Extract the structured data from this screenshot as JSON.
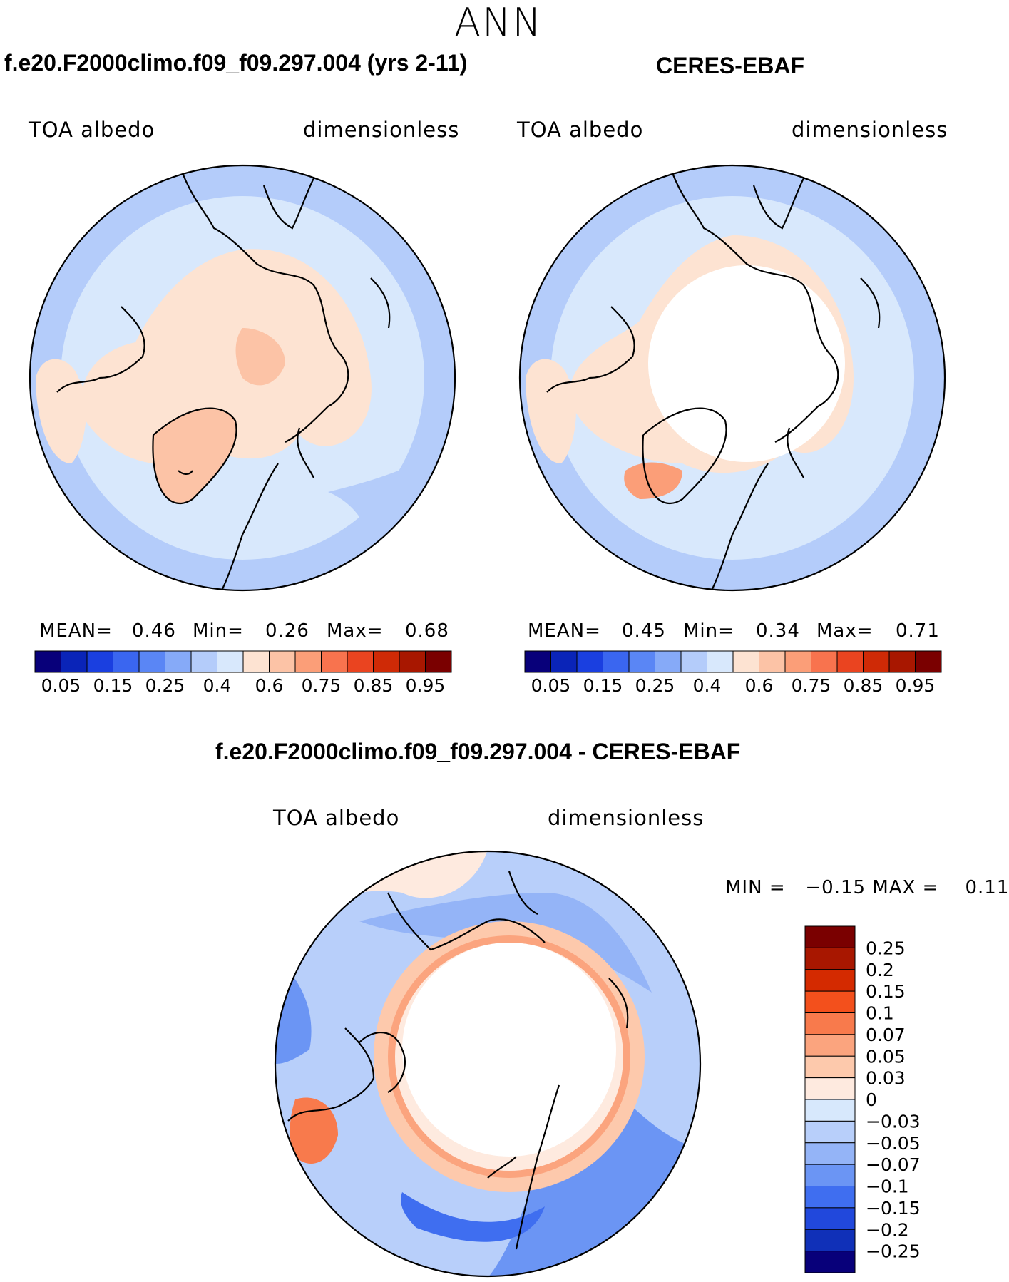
{
  "season": "ANN",
  "panels": [
    {
      "title": "f.e20.F2000climo.f09_f09.297.004 (yrs 2-11)",
      "variable": "TOA albedo",
      "units": "dimensionless",
      "mean_label": "MEAN=",
      "mean": "0.46",
      "min_label": "Min=",
      "min": "0.26",
      "max_label": "Max=",
      "max": "0.68"
    },
    {
      "title": "CERES-EBAF",
      "variable": "TOA albedo",
      "units": "dimensionless",
      "mean_label": "MEAN=",
      "mean": "0.45",
      "min_label": "Min=",
      "min": "0.34",
      "max_label": "Max=",
      "max": "0.71"
    }
  ],
  "diff_panel": {
    "title": "f.e20.F2000climo.f09_f09.297.004 - CERES-EBAF",
    "variable": "TOA albedo",
    "units": "dimensionless",
    "stats_text": "MIN =   −0.15 MAX =    0.11"
  },
  "colors": {
    "abs_levels": [
      "#08007a",
      "#0a24b8",
      "#1a3fe0",
      "#3a66f0",
      "#5a86f5",
      "#86aaf8",
      "#b4ccfa",
      "#d8e8fc",
      "#fde3d2",
      "#fcc3a6",
      "#fb9e78",
      "#f8734e",
      "#ea4420",
      "#cf2a06",
      "#a81700",
      "#7a0000"
    ],
    "diff_levels": [
      "#7a0000",
      "#a81700",
      "#d42a00",
      "#f3501c",
      "#f87a4c",
      "#fba47e",
      "#fdc9ac",
      "#feeadf",
      "#d7e8fc",
      "#b8cffa",
      "#94b4f7",
      "#6b95f4",
      "#3f6ef0",
      "#2148dc",
      "#1030b8",
      "#08007a"
    ],
    "land": "#000000"
  },
  "chart_data": [
    {
      "type": "heatmap",
      "projection": "north-polar-stereographic",
      "title": "f.e20.F2000climo.f09_f09.297.004 (yrs 2-11)",
      "colorbar_ticks": [
        "0.05",
        "0.15",
        "0.25",
        "0.4",
        "0.6",
        "0.75",
        "0.85",
        "0.95"
      ],
      "levels": [
        0.05,
        0.1,
        0.15,
        0.2,
        0.25,
        0.3,
        0.4,
        0.5,
        0.6,
        0.7,
        0.75,
        0.8,
        0.85,
        0.9,
        0.95
      ],
      "mean": 0.46,
      "min": 0.26,
      "max": 0.68
    },
    {
      "type": "heatmap",
      "projection": "north-polar-stereographic",
      "title": "CERES-EBAF",
      "colorbar_ticks": [
        "0.05",
        "0.15",
        "0.25",
        "0.4",
        "0.6",
        "0.75",
        "0.85",
        "0.95"
      ],
      "levels": [
        0.05,
        0.1,
        0.15,
        0.2,
        0.25,
        0.3,
        0.4,
        0.5,
        0.6,
        0.7,
        0.75,
        0.8,
        0.85,
        0.9,
        0.95
      ],
      "mean": 0.45,
      "min": 0.34,
      "max": 0.71
    },
    {
      "type": "heatmap",
      "projection": "north-polar-stereographic",
      "title": "f.e20.F2000climo.f09_f09.297.004 - CERES-EBAF",
      "colorbar_ticks": [
        "0.25",
        "0.2",
        "0.15",
        "0.1",
        "0.07",
        "0.05",
        "0.03",
        "0",
        "−0.03",
        "−0.05",
        "−0.07",
        "−0.1",
        "−0.15",
        "−0.2",
        "−0.25"
      ],
      "min": -0.15,
      "max": 0.11
    }
  ]
}
